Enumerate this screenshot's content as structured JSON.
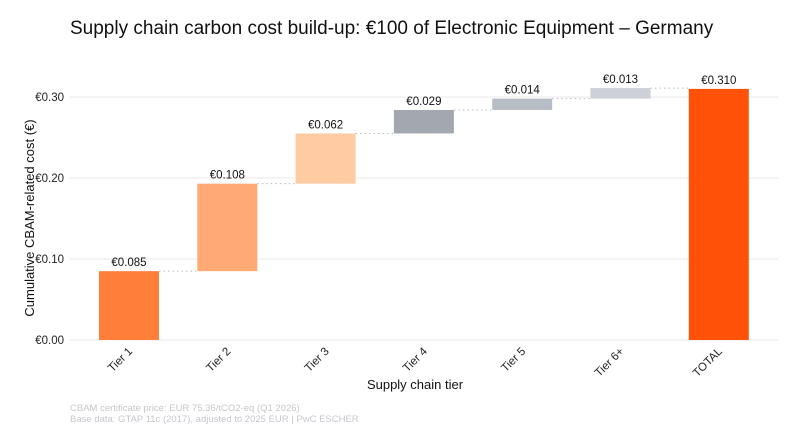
{
  "chart_data": {
    "type": "waterfall",
    "title": "Supply chain carbon cost build-up: €100 of Electronic Equipment – Germany",
    "xlabel": "Supply chain tier",
    "ylabel": "Cumulative CBAM-related cost (€)",
    "ylim": [
      0,
      0.32
    ],
    "yticks": [
      0,
      0.1,
      0.2,
      0.3
    ],
    "ytick_labels": [
      "€0.00",
      "€0.10",
      "€0.20",
      "€0.30"
    ],
    "grid": "horizontal",
    "categories": [
      "Tier 1",
      "Tier 2",
      "Tier 3",
      "Tier 4",
      "Tier 5",
      "Tier 6+",
      "TOTAL"
    ],
    "values": [
      0.085,
      0.108,
      0.062,
      0.029,
      0.014,
      0.013,
      0.31
    ],
    "data_labels": [
      "€0.085",
      "€0.108",
      "€0.062",
      "€0.029",
      "€0.014",
      "€0.013",
      "€0.310"
    ],
    "is_total": [
      false,
      false,
      false,
      false,
      false,
      false,
      true
    ],
    "colors": [
      "#FF7F3A",
      "#FFAA74",
      "#FFCBA3",
      "#A3A7B0",
      "#B8BCC4",
      "#CDD0D6",
      "#FF5208"
    ]
  },
  "notes": [
    "CBAM certificate price: EUR 75.36/tCO2-eq (Q1 2026)",
    "Base data: GTAP 11c (2017), adjusted to 2025 EUR | PwC ESCHER"
  ]
}
